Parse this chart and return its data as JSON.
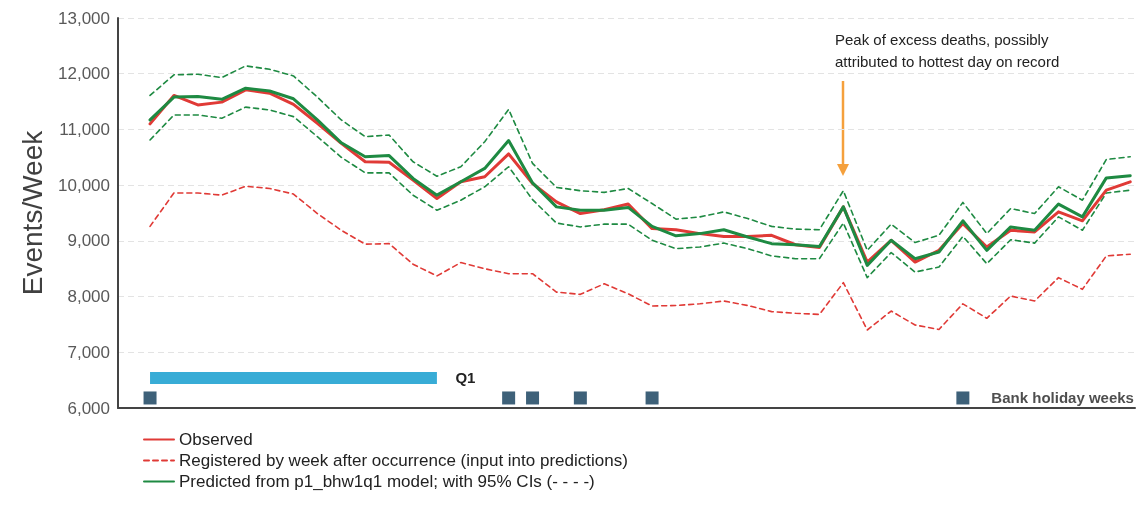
{
  "chart_data": {
    "type": "line",
    "ylabel": "Events/Week",
    "categories": [
      null,
      null,
      null,
      null,
      null,
      null,
      null,
      null,
      null,
      null,
      null,
      null,
      null,
      null,
      null,
      null,
      null,
      null,
      null,
      null,
      null,
      null,
      null,
      null,
      null,
      null,
      null,
      null,
      null,
      null,
      null,
      null,
      null,
      null,
      null,
      null,
      null,
      null,
      null,
      null,
      null,
      null
    ],
    "ylim": [
      6000,
      13000
    ],
    "yticks": [
      {
        "value": 6000,
        "label": "6,000"
      },
      {
        "value": 7000,
        "label": "7,000"
      },
      {
        "value": 8000,
        "label": "8,000"
      },
      {
        "value": 9000,
        "label": "9,000"
      },
      {
        "value": 10000,
        "label": "10,000"
      },
      {
        "value": 11000,
        "label": "11,000"
      },
      {
        "value": 12000,
        "label": "12,000"
      },
      {
        "value": 13000,
        "label": "13,000"
      }
    ],
    "grid": "y",
    "legend": "bottom left",
    "marker": "none",
    "tick_labels": "y",
    "annotations": [
      "Peak of excess deaths, possibly attributed to hottest day on record"
    ],
    "series": [
      {
        "name": "Observed",
        "color": "#e03a36",
        "line_style": "solid",
        "values": [
          11100,
          11610,
          11440,
          11490,
          11710,
          11650,
          11450,
          11110,
          10750,
          10420,
          10410,
          10090,
          9760,
          10060,
          10150,
          10560,
          10030,
          9700,
          9490,
          9560,
          9660,
          9220,
          9200,
          9130,
          9080,
          9080,
          9100,
          8930,
          8880,
          9610,
          8620,
          9010,
          8620,
          8830,
          9310,
          8890,
          9190,
          9160,
          9520,
          9360,
          9910,
          10060
        ]
      },
      {
        "name": "Registered by week after occurrence (input into predictions)",
        "color": "#e03a36",
        "line_style": "dashed",
        "values": [
          9260,
          9860,
          9860,
          9820,
          9980,
          9940,
          9840,
          9490,
          9190,
          8940,
          8950,
          8580,
          8370,
          8610,
          8500,
          8410,
          8410,
          8080,
          8040,
          8230,
          8050,
          7830,
          7840,
          7870,
          7920,
          7840,
          7730,
          7700,
          7680,
          8250,
          7400,
          7740,
          7490,
          7410,
          7870,
          7610,
          8010,
          7920,
          8340,
          8130,
          8730,
          8760
        ]
      },
      {
        "name": "Predicted from p1_bhw1q1 model; with 95% CIs (- - - -)",
        "color": "#1e8a42",
        "line_style": "solid",
        "values": [
          11170,
          11580,
          11590,
          11540,
          11740,
          11690,
          11550,
          11170,
          10760,
          10510,
          10530,
          10120,
          9820,
          10060,
          10300,
          10800,
          10040,
          9610,
          9550,
          9550,
          9600,
          9260,
          9090,
          9130,
          9200,
          9070,
          8950,
          8930,
          8900,
          9610,
          8560,
          9010,
          8680,
          8800,
          9360,
          8830,
          9250,
          9190,
          9660,
          9430,
          10130,
          10170
        ]
      },
      {
        "color": "#1e8a42",
        "line_style": "dashed",
        "values": [
          11610,
          11980,
          11990,
          11930,
          12140,
          12080,
          11960,
          11580,
          11170,
          10870,
          10900,
          10420,
          10160,
          10330,
          10780,
          11360,
          10390,
          9960,
          9900,
          9870,
          9940,
          9670,
          9390,
          9430,
          9520,
          9400,
          9260,
          9210,
          9200,
          9900,
          8830,
          9300,
          8970,
          9100,
          9690,
          9130,
          9580,
          9490,
          9970,
          9730,
          10460,
          10510
        ]
      },
      {
        "color": "#1e8a42",
        "line_style": "dashed",
        "values": [
          10810,
          11260,
          11260,
          11200,
          11400,
          11350,
          11230,
          10870,
          10500,
          10220,
          10220,
          9820,
          9550,
          9730,
          9970,
          10330,
          9740,
          9320,
          9250,
          9300,
          9300,
          9010,
          8860,
          8890,
          8960,
          8860,
          8730,
          8680,
          8680,
          9320,
          8340,
          8790,
          8440,
          8530,
          9080,
          8590,
          9020,
          8960,
          9430,
          9190,
          9860,
          9910
        ]
      },
      {
        "name": "Q1",
        "type": "step",
        "color": "#38acd6",
        "values": [
          6540,
          6540,
          6540,
          6540,
          6540,
          6540,
          6540,
          6540,
          6540,
          6540,
          6540,
          6540,
          6540,
          null,
          null,
          null,
          null,
          null,
          null,
          null,
          null,
          null,
          null,
          null,
          null,
          null,
          null,
          null,
          null,
          null,
          null,
          null,
          null,
          null,
          null,
          null,
          null,
          null,
          null,
          null,
          null,
          null
        ]
      },
      {
        "name": "Bank holiday weeks",
        "type": "scatter",
        "marker": "square",
        "color": "#0e3a57",
        "values": [
          6180,
          null,
          null,
          null,
          null,
          null,
          null,
          null,
          null,
          null,
          null,
          null,
          null,
          null,
          null,
          6180,
          6180,
          null,
          6180,
          null,
          null,
          6180,
          null,
          null,
          null,
          null,
          null,
          null,
          null,
          null,
          null,
          null,
          null,
          null,
          6180,
          null,
          null,
          null,
          null,
          null,
          null,
          null
        ]
      }
    ]
  }
}
